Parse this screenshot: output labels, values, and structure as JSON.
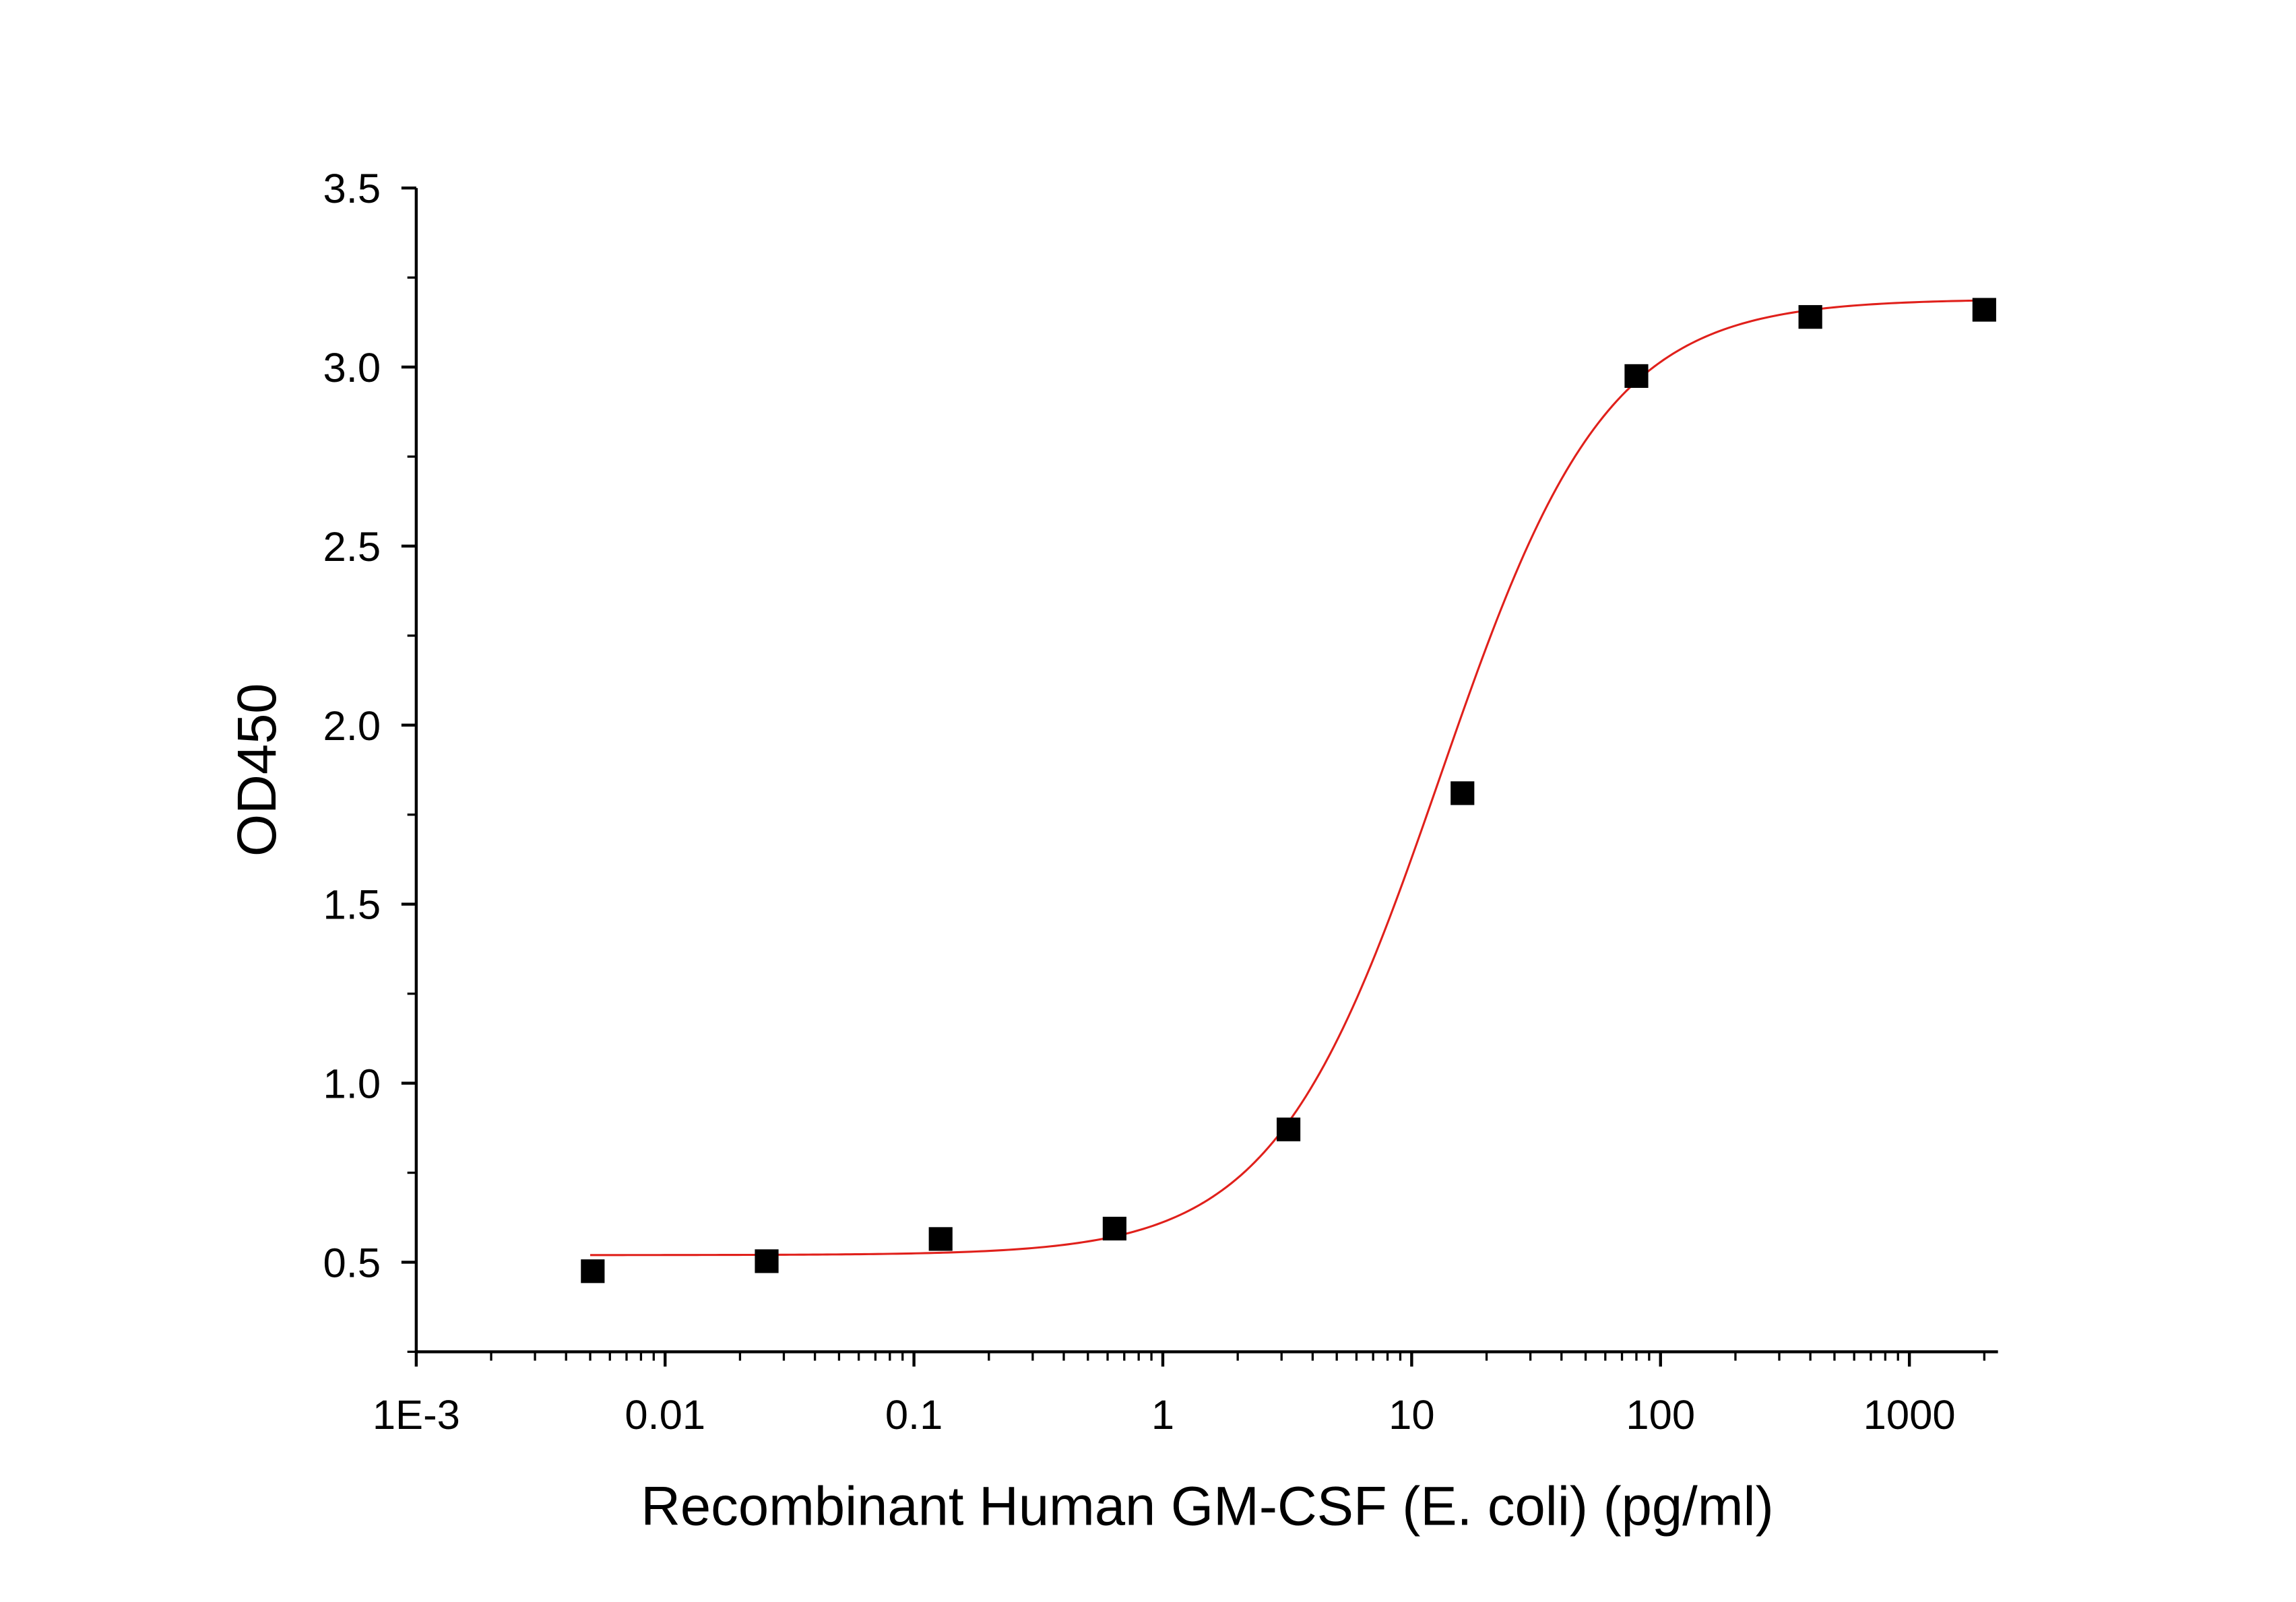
{
  "chart_data": {
    "type": "scatter",
    "title": "",
    "xlabel": "Recombinant Human GM-CSF (E. coli) (pg/ml)",
    "ylabel": "OD450",
    "xscale": "log",
    "xlim": [
      0.001,
      2270
    ],
    "ylim": [
      0.25,
      3.5
    ],
    "x_ticks": [
      0.001,
      0.01,
      0.1,
      1,
      10,
      100,
      1000
    ],
    "x_tick_labels": [
      "1E-3",
      "0.01",
      "0.1",
      "1",
      "10",
      "100",
      "1000"
    ],
    "y_ticks": [
      0.5,
      1.0,
      1.5,
      2.0,
      2.5,
      3.0,
      3.5
    ],
    "y_tick_labels": [
      "0.5",
      "1.0",
      "1.5",
      "2.0",
      "2.5",
      "3.0",
      "3.5"
    ],
    "grid": false,
    "legend": "none",
    "series": [
      {
        "type": "scatter",
        "marker": "square",
        "color": "#000000",
        "x": [
          0.00512,
          0.0256,
          0.128,
          0.64,
          3.2,
          16,
          80,
          400,
          2000
        ],
        "y": [
          0.475,
          0.503,
          0.565,
          0.594,
          0.871,
          1.81,
          2.975,
          3.14,
          3.16
        ]
      },
      {
        "type": "line",
        "fit": "4PL",
        "color": "#e0201b",
        "params": {
          "bottom": 0.52,
          "top": 3.19,
          "ec50": 13,
          "hill": 1.3
        },
        "x_range": [
          0.005,
          2000
        ]
      }
    ]
  }
}
